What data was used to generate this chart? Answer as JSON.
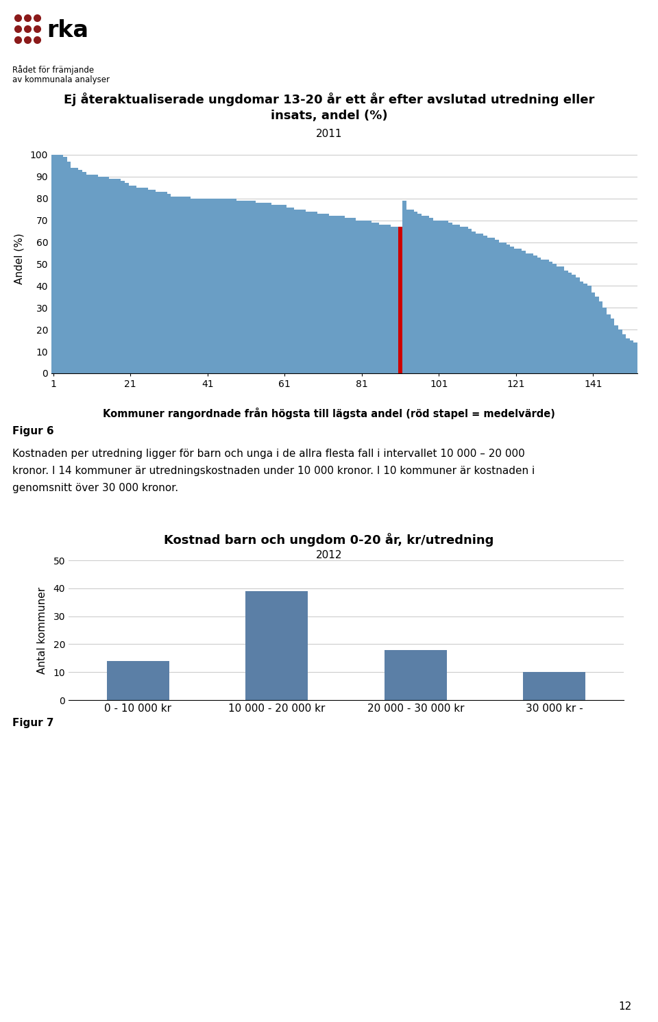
{
  "chart1": {
    "title_line1": "Ej återaktualiserade ungdomar 13-20 år ett år efter avslutad utredning eller",
    "title_line2": "insats, andel (%)",
    "subtitle": "2011",
    "ylabel": "Andel (%)",
    "xlabel": "Kommuner rangordnade från högsta till lägsta andel (röd stapel = medelvärde)",
    "yticks": [
      0,
      10,
      20,
      30,
      40,
      50,
      60,
      70,
      80,
      90,
      100
    ],
    "xticks": [
      1,
      21,
      41,
      61,
      81,
      101,
      121,
      141
    ],
    "bar_color": "#6A9EC5",
    "red_bar_index": 90,
    "values": [
      100,
      100,
      100,
      99,
      97,
      94,
      94,
      93,
      92,
      91,
      91,
      91,
      90,
      90,
      90,
      89,
      89,
      89,
      88,
      87,
      86,
      86,
      85,
      85,
      85,
      84,
      84,
      83,
      83,
      83,
      82,
      81,
      81,
      81,
      81,
      81,
      80,
      80,
      80,
      80,
      80,
      80,
      80,
      80,
      80,
      80,
      80,
      80,
      79,
      79,
      79,
      79,
      79,
      78,
      78,
      78,
      78,
      77,
      77,
      77,
      77,
      76,
      76,
      75,
      75,
      75,
      74,
      74,
      74,
      73,
      73,
      73,
      72,
      72,
      72,
      72,
      71,
      71,
      71,
      70,
      70,
      70,
      70,
      69,
      69,
      68,
      68,
      68,
      67,
      67,
      67,
      79,
      75,
      75,
      74,
      73,
      72,
      72,
      71,
      70,
      70,
      70,
      70,
      69,
      68,
      68,
      67,
      67,
      66,
      65,
      64,
      64,
      63,
      62,
      62,
      61,
      60,
      60,
      59,
      58,
      57,
      57,
      56,
      55,
      55,
      54,
      53,
      52,
      52,
      51,
      50,
      49,
      49,
      47,
      46,
      45,
      44,
      42,
      41,
      40,
      37,
      35,
      33,
      30,
      27,
      25,
      22,
      20,
      18,
      16,
      15,
      14
    ]
  },
  "figur6_label": "Figur 6",
  "figur6_body": "Kostnaden per utredning ligger för barn och unga i de allra flesta fall i intervallet 10 000 – 20 000\nkronor. I 14 kommuner är utredningskostnaden under 10 000 kronor. I 10 kommuner är kostnaden i\ngenomsnitt över 30 000 kronor.",
  "chart2": {
    "title_line1": "Kostnad barn och ungdom 0-20 år, kr/utredning",
    "subtitle": "2012",
    "ylabel": "Antal kommuner",
    "categories": [
      "0 - 10 000 kr",
      "10 000 - 20 000 kr",
      "20 000 - 30 000 kr",
      "30 000 kr -"
    ],
    "values": [
      14,
      39,
      18,
      10
    ],
    "bar_color": "#5B7FA6",
    "yticks": [
      0,
      10,
      20,
      30,
      40,
      50
    ],
    "ylim": [
      0,
      50
    ]
  },
  "figur7_text": "Figur 7",
  "page_number": "12",
  "background_color": "#ffffff"
}
